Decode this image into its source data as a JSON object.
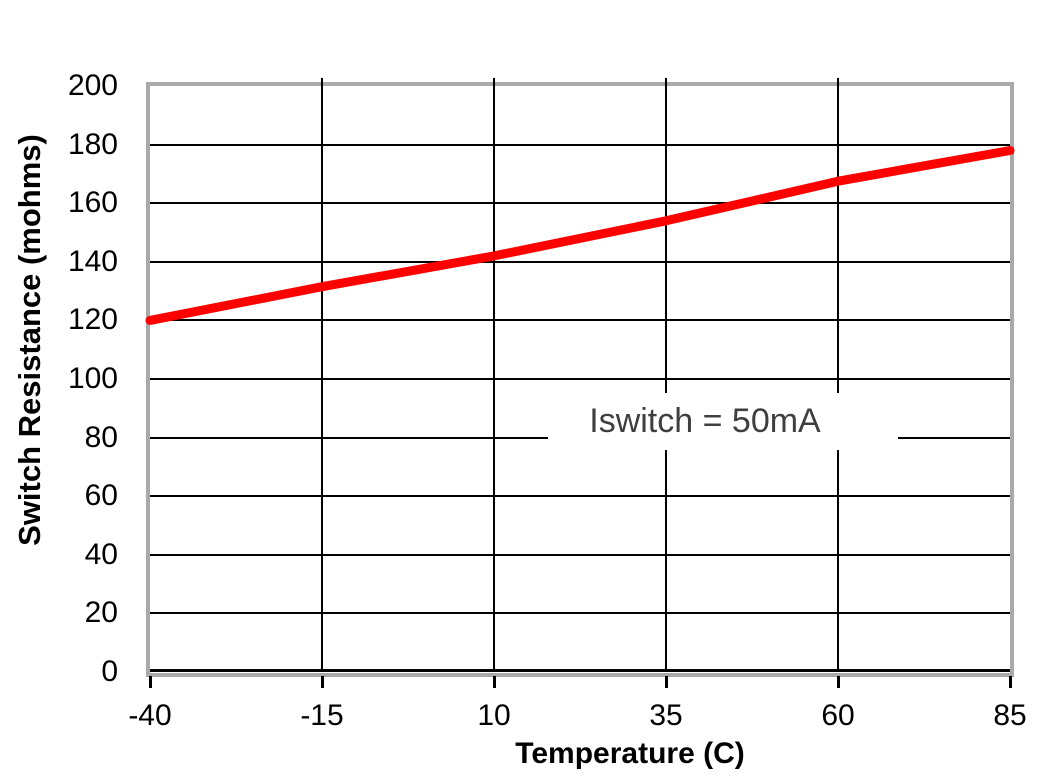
{
  "chart_data": {
    "type": "line",
    "title": "",
    "xlabel": "Temperature (C)",
    "ylabel": "Switch Resistance (mohms)",
    "xlim": [
      -40,
      85
    ],
    "ylim": [
      0,
      200
    ],
    "x_ticks": [
      -40,
      -15,
      10,
      35,
      60,
      85
    ],
    "y_ticks": [
      0,
      20,
      40,
      60,
      80,
      100,
      120,
      140,
      160,
      180,
      200
    ],
    "grid": true,
    "legend_position": "none",
    "annotation": "Iswitch = 50mA",
    "series": [
      {
        "name": "Iswitch = 50mA",
        "x": [
          -40,
          -15,
          10,
          35,
          60,
          85
        ],
        "values": [
          120,
          131.5,
          142,
          154,
          167.5,
          178
        ]
      }
    ],
    "colors": {
      "line": "#ff0000",
      "grid": "#000000",
      "frame": "#a9a9a9",
      "axis_text": "#000000",
      "annotation_text": "#3f3f3f",
      "background": "#ffffff"
    }
  }
}
